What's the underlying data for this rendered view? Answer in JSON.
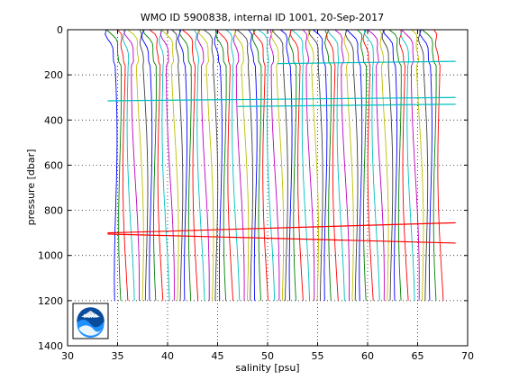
{
  "chart_data": {
    "type": "line",
    "title": "WMO ID 5900838, internal ID 1001, 20-Sep-2017",
    "xlabel": "salinity [psu]",
    "ylabel": "pressure [dbar]",
    "xlim": [
      30,
      70
    ],
    "ylim": [
      0,
      1400
    ],
    "y_reversed": true,
    "grid": "dotted",
    "x_ticks": [
      30,
      35,
      40,
      45,
      50,
      55,
      60,
      65,
      70
    ],
    "y_ticks": [
      0,
      200,
      400,
      600,
      800,
      1000,
      1200,
      1400
    ],
    "profile_count": 66,
    "profile_offset_step": 0.5,
    "first_profile_surface_salinity": 34.6,
    "profile_colors": [
      "#0000ff",
      "#008000",
      "#ff0000",
      "#00bfbf",
      "#bf00bf",
      "#bfbf00",
      "#404040"
    ],
    "reference_lines": [
      {
        "color": "#00bfbf",
        "x": [
          34.0,
          68.8
        ],
        "y": [
          315,
          300
        ]
      },
      {
        "color": "#00bfbf",
        "x": [
          47.0,
          68.8
        ],
        "y": [
          340,
          330
        ]
      },
      {
        "color": "#00bfbf",
        "x": [
          51.0,
          68.8
        ],
        "y": [
          150,
          140
        ]
      },
      {
        "color": "#ff0000",
        "x": [
          34.0,
          68.8
        ],
        "y": [
          900,
          855
        ]
      },
      {
        "color": "#ff0000",
        "x": [
          34.0,
          68.8
        ],
        "y": [
          905,
          945
        ]
      }
    ]
  },
  "logo": {
    "text": "NOAA"
  }
}
